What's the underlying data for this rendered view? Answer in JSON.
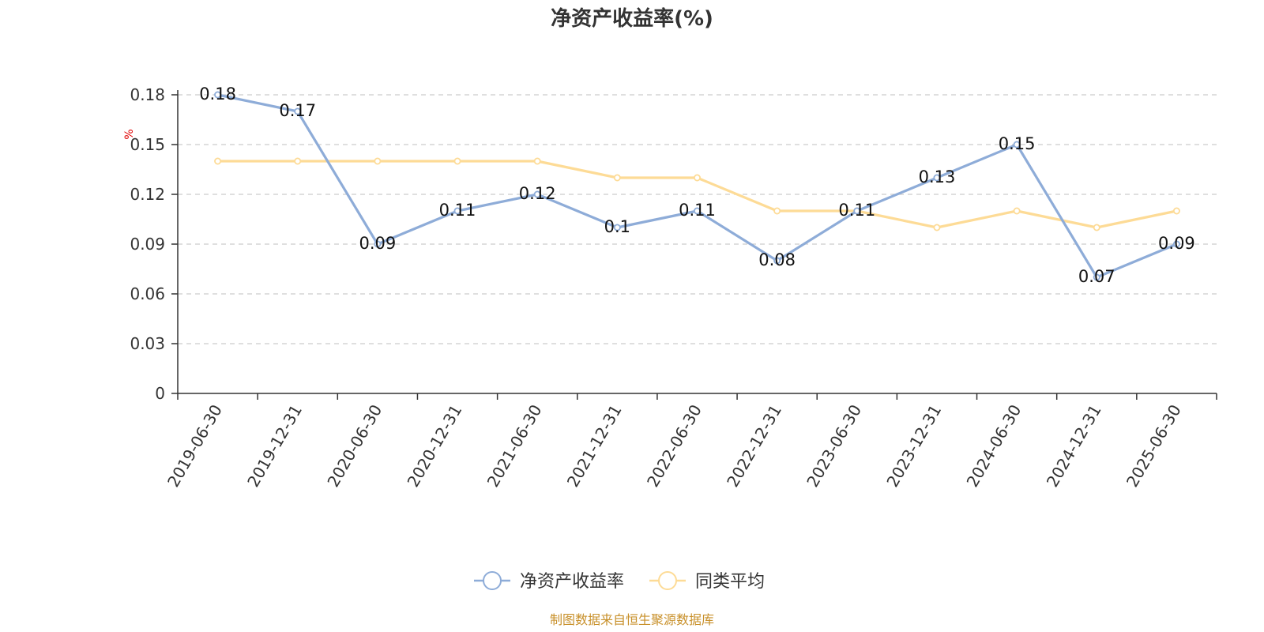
{
  "chart_data": {
    "type": "line",
    "title": "净资产收益率(%)",
    "ylabel": "%",
    "categories": [
      "2019-06-30",
      "2019-12-31",
      "2020-06-30",
      "2020-12-31",
      "2021-06-30",
      "2021-12-31",
      "2022-06-30",
      "2022-12-31",
      "2023-06-30",
      "2023-12-31",
      "2024-06-30",
      "2024-12-31",
      "2025-06-30"
    ],
    "y_ticks": [
      "0",
      "0.03",
      "0.06",
      "0.09",
      "0.12",
      "0.15",
      "0.18"
    ],
    "ylim": [
      0,
      0.18
    ],
    "grid": true,
    "legend_position": "bottom-center",
    "series": [
      {
        "name": "净资产收益率",
        "color": "#8eacd8",
        "values": [
          0.18,
          0.17,
          0.09,
          0.11,
          0.12,
          0.1,
          0.11,
          0.08,
          0.11,
          0.13,
          0.15,
          0.07,
          0.09
        ],
        "labels": [
          "0.18",
          "0.17",
          "0.09",
          "0.11",
          "0.12",
          "0.1",
          "0.11",
          "0.08",
          "0.11",
          "0.13",
          "0.15",
          "0.07",
          "0.09"
        ]
      },
      {
        "name": "同类平均",
        "color": "#fddb96",
        "values": [
          0.14,
          0.14,
          0.14,
          0.14,
          0.14,
          0.13,
          0.13,
          0.11,
          0.11,
          0.1,
          0.11,
          0.1,
          0.11
        ]
      }
    ]
  },
  "source_text": "制图数据来自恒生聚源数据库",
  "colors": {
    "axis": "#333333",
    "grid": "#cccccc",
    "unit": "#e00000",
    "source": "#c8902a"
  }
}
